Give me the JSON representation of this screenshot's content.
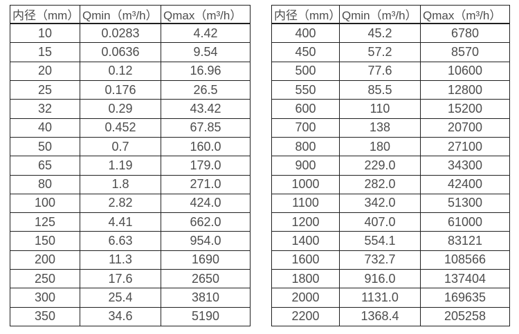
{
  "page": {
    "background_color": "#ffffff",
    "border_color": "#1f1f1f",
    "text_color": "#4d4d4d"
  },
  "chart_data": [
    {
      "type": "table",
      "title": "",
      "headers": [
        "内径（mm）",
        "Qmin（m³/h）",
        "Qmax（m³/h）"
      ],
      "rows": [
        [
          "10",
          "0.0283",
          "4.42"
        ],
        [
          "15",
          "0.0636",
          "9.54"
        ],
        [
          "20",
          "0.12",
          "16.96"
        ],
        [
          "25",
          "0.176",
          "26.5"
        ],
        [
          "32",
          "0.29",
          "43.42"
        ],
        [
          "40",
          "0.452",
          "67.85"
        ],
        [
          "50",
          "0.7",
          "160.0"
        ],
        [
          "65",
          "1.19",
          "179.0"
        ],
        [
          "80",
          "1.8",
          "271.0"
        ],
        [
          "100",
          "2.82",
          "424.0"
        ],
        [
          "125",
          "4.41",
          "662.0"
        ],
        [
          "150",
          "6.63",
          "954.0"
        ],
        [
          "200",
          "11.3",
          "1690"
        ],
        [
          "250",
          "17.6",
          "2650"
        ],
        [
          "300",
          "25.4",
          "3810"
        ],
        [
          "350",
          "34.6",
          "5190"
        ]
      ]
    },
    {
      "type": "table",
      "title": "",
      "headers": [
        "内径（mm）",
        "Qmin（m³/h）",
        "Qmax（m³/h）"
      ],
      "rows": [
        [
          "400",
          "45.2",
          "6780"
        ],
        [
          "450",
          "57.2",
          "8570"
        ],
        [
          "500",
          "77.6",
          "10600"
        ],
        [
          "550",
          "85.5",
          "12800"
        ],
        [
          "600",
          "110",
          "15200"
        ],
        [
          "700",
          "138",
          "20700"
        ],
        [
          "800",
          "180",
          "27100"
        ],
        [
          "900",
          "229.0",
          "34300"
        ],
        [
          "1000",
          "282.0",
          "42400"
        ],
        [
          "1100",
          "342.0",
          "51300"
        ],
        [
          "1200",
          "407.0",
          "61000"
        ],
        [
          "1400",
          "554.1",
          "83121"
        ],
        [
          "1600",
          "732.7",
          "108566"
        ],
        [
          "1800",
          "916.0",
          "137404"
        ],
        [
          "2000",
          "1131.0",
          "169635"
        ],
        [
          "2200",
          "1368.4",
          "205258"
        ]
      ]
    }
  ]
}
